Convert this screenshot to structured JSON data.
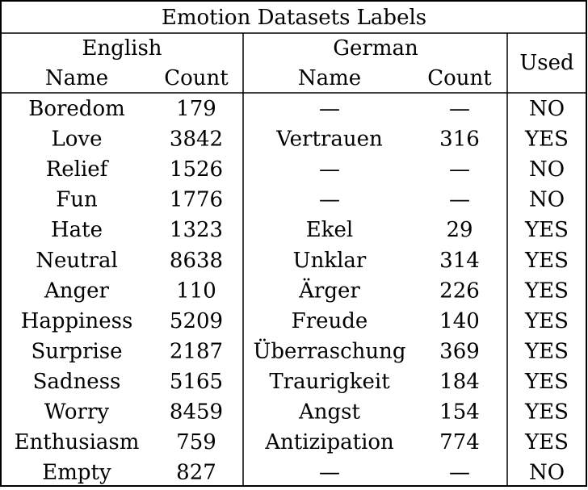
{
  "table": {
    "title": "Emotion Datasets Labels",
    "group_headers": {
      "english": "English",
      "german": "German",
      "used": "Used"
    },
    "sub_headers": {
      "en_name": "Name",
      "en_count": "Count",
      "de_name": "Name",
      "de_count": "Count"
    },
    "rows": [
      [
        "Boredom",
        "179",
        "—",
        "—",
        "NO"
      ],
      [
        "Love",
        "3842",
        "Vertrauen",
        "316",
        "YES"
      ],
      [
        "Relief",
        "1526",
        "—",
        "—",
        "NO"
      ],
      [
        "Fun",
        "1776",
        "—",
        "—",
        "NO"
      ],
      [
        "Hate",
        "1323",
        "Ekel",
        "29",
        "YES"
      ],
      [
        "Neutral",
        "8638",
        "Unklar",
        "314",
        "YES"
      ],
      [
        "Anger",
        "110",
        "Ärger",
        "226",
        "YES"
      ],
      [
        "Happiness",
        "5209",
        "Freude",
        "140",
        "YES"
      ],
      [
        "Surprise",
        "2187",
        "Überraschung",
        "369",
        "YES"
      ],
      [
        "Sadness",
        "5165",
        "Traurigkeit",
        "184",
        "YES"
      ],
      [
        "Worry",
        "8459",
        "Angst",
        "154",
        "YES"
      ],
      [
        "Enthusiasm",
        "759",
        "Antizipation",
        "774",
        "YES"
      ],
      [
        "Empty",
        "827",
        "—",
        "—",
        "NO"
      ]
    ]
  }
}
